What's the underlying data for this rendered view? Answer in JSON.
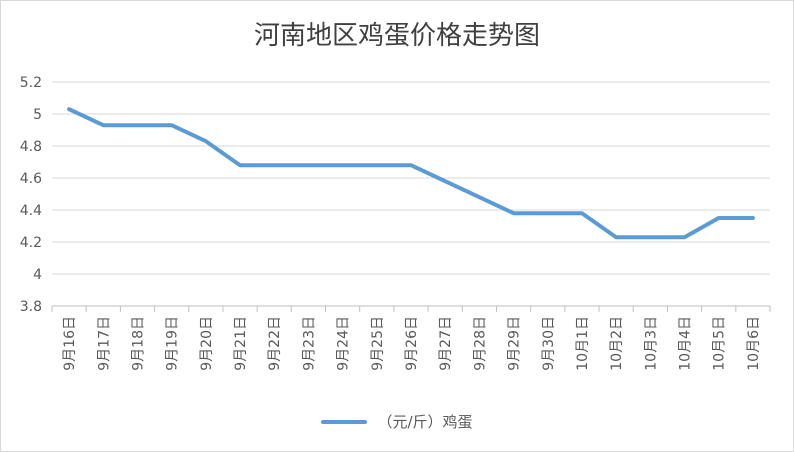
{
  "chart_data": {
    "type": "line",
    "title": "河南地区鸡蛋价格走势图",
    "xlabel": "",
    "ylabel": "",
    "categories": [
      "9月16日",
      "9月17日",
      "9月18日",
      "9月19日",
      "9月20日",
      "9月21日",
      "9月22日",
      "9月23日",
      "9月24日",
      "9月25日",
      "9月26日",
      "9月27日",
      "9月28日",
      "9月29日",
      "9月30日",
      "10月1日",
      "10月2日",
      "10月3日",
      "10月4日",
      "10月5日",
      "10月6日"
    ],
    "series": [
      {
        "name": "（元/斤）鸡蛋",
        "color": "#5b9bd5",
        "values": [
          5.03,
          4.93,
          4.93,
          4.93,
          4.83,
          4.68,
          4.68,
          4.68,
          4.68,
          4.68,
          4.68,
          4.58,
          4.48,
          4.38,
          4.38,
          4.38,
          4.23,
          4.23,
          4.23,
          4.35,
          4.35
        ]
      }
    ],
    "ylim": [
      3.8,
      5.2
    ],
    "yticks": [
      "3.8",
      "4",
      "4.2",
      "4.4",
      "4.6",
      "4.8",
      "5",
      "5.2"
    ],
    "grid": true,
    "legend_position": "bottom"
  }
}
